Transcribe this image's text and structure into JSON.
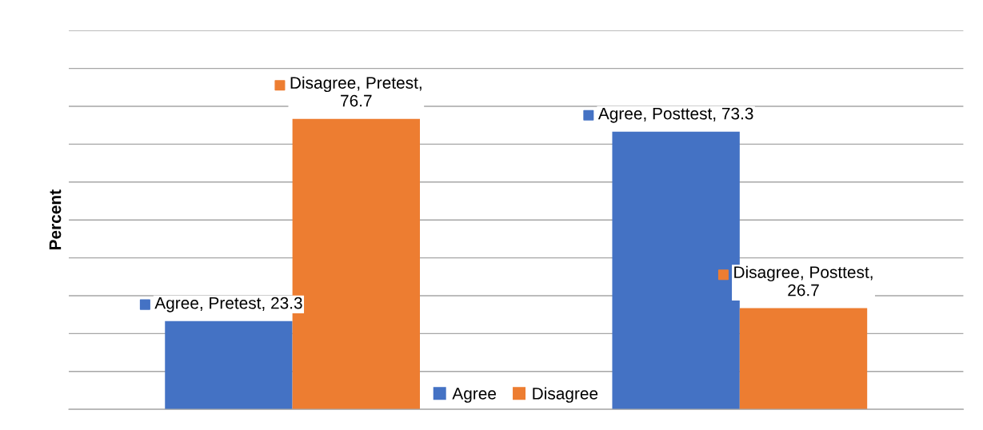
{
  "chart_data": {
    "type": "bar",
    "ylabel": "Percent",
    "categories": [
      null,
      null
    ],
    "series": [
      {
        "name": "Agree",
        "color": "#4472c4",
        "values": [
          23.3,
          73.3
        ],
        "value_labels": [
          "Agree, Pretest, 23.3",
          "Agree, Posttest, 73.3"
        ]
      },
      {
        "name": "Disagree",
        "color": "#ed7d31",
        "values": [
          76.7,
          26.7
        ],
        "value_labels": [
          "Disagree, Pretest,\n76.7",
          "Disagree, Posttest,\n26.7"
        ]
      }
    ],
    "ylim": [
      0,
      100
    ],
    "yticks": [
      {
        "value": 0,
        "label": null
      },
      {
        "value": 10,
        "label": null
      },
      {
        "value": 20,
        "label": null
      },
      {
        "value": 30,
        "label": null
      },
      {
        "value": 40,
        "label": null
      },
      {
        "value": 50,
        "label": null
      },
      {
        "value": 60,
        "label": null
      },
      {
        "value": 70,
        "label": null
      },
      {
        "value": 80,
        "label": null
      },
      {
        "value": 90,
        "label": null
      },
      {
        "value": 100,
        "label": null
      }
    ],
    "tick_labels": false,
    "grid": "y",
    "legend": "bottom"
  }
}
